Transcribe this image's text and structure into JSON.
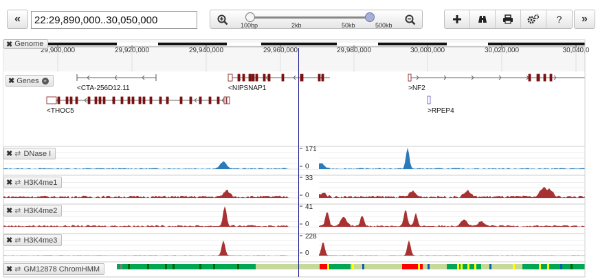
{
  "nav": {
    "back_label": "«",
    "forward_label": "»",
    "location_value": "22:29,890,000..30,050,000"
  },
  "zoom": {
    "in_icon": "zoom-in-icon",
    "out_icon": "zoom-out-icon",
    "ticks": [
      "100bp",
      "2kb",
      "50kb",
      "500kb"
    ],
    "level_fraction": 1.0
  },
  "toolbar": {
    "buttons": [
      "plus-icon",
      "binoculars-icon",
      "print-icon",
      "gears-icon",
      "help-icon"
    ],
    "add_label": "+",
    "help_label": "?"
  },
  "ruler": {
    "track_name": "Genome",
    "start": 29890000,
    "end": 30050000,
    "ticks": [
      "29,900,000",
      "29,920,000",
      "29,940,000",
      "29,960,000",
      "29,980,000",
      "30,000,000",
      "30,020,000",
      "30,040,0"
    ]
  },
  "genes": {
    "track_name": "Genes",
    "labels": [
      "<CTA-256D12.11",
      "<NIPSNAP1",
      ">NF2",
      "<THOC5",
      ">RPEP4"
    ]
  },
  "tracks": [
    {
      "name": "DNase I",
      "max": "171",
      "min": "0",
      "color": "#2b7bba"
    },
    {
      "name": "H3K4me1",
      "max": "33",
      "min": "0",
      "color": "#a83232"
    },
    {
      "name": "H3K4me2",
      "max": "41",
      "min": "0",
      "color": "#a83232"
    },
    {
      "name": "H3K4me3",
      "max": "228",
      "min": "0",
      "color": "#a83232"
    }
  ],
  "chromhmm": {
    "track_name": "GM12878 ChromHMM",
    "colors": {
      "active": "#00a651",
      "weak": "#c6d99a",
      "promoter": "#ff0000",
      "enhancer": "#ffff00",
      "insulator": "#0a5cad",
      "repressed": "#7f7f7f"
    }
  },
  "colors": {
    "center_line": "#1a1a8c",
    "gene": "#7a1010"
  }
}
